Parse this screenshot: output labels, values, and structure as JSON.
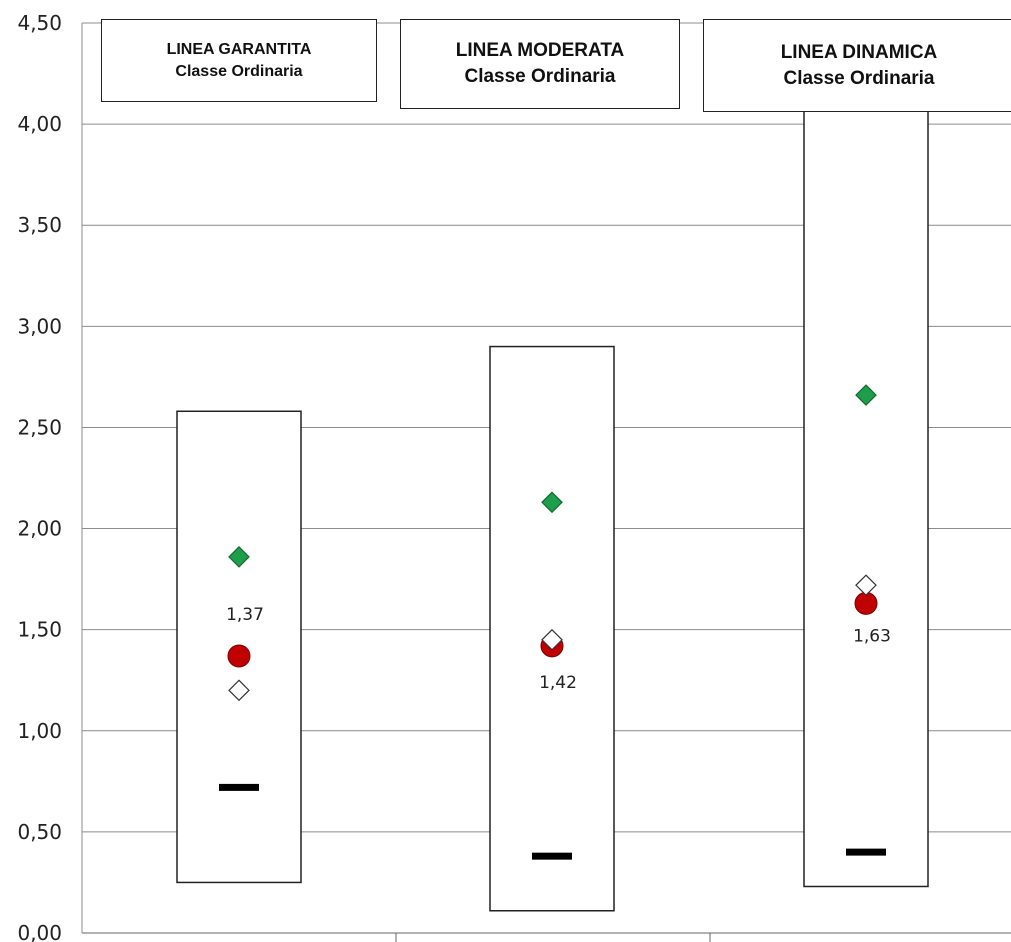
{
  "chart_data": {
    "type": "scatter",
    "ylim": [
      0,
      4.5
    ],
    "yticks": [
      "0,00",
      "0,50",
      "1,00",
      "1,50",
      "2,00",
      "2,50",
      "3,00",
      "3,50",
      "4,00",
      "4,50"
    ],
    "grid": true,
    "categories": [
      {
        "title": "LINEA GARANTITA",
        "subtitle": "Classe Ordinaria"
      },
      {
        "title": "LINEA MODERATA",
        "subtitle": "Classe Ordinaria"
      },
      {
        "title": "LINEA DINAMICA",
        "subtitle": "Classe Ordinaria"
      }
    ],
    "range_boxes": [
      {
        "low": 0.25,
        "high": 2.58
      },
      {
        "low": 0.11,
        "high": 2.9
      },
      {
        "low": 0.23,
        "high": 4.1
      }
    ],
    "series": [
      {
        "marker": "green-diamond",
        "color": "#1e9e4a",
        "values": [
          1.86,
          2.13,
          2.66
        ]
      },
      {
        "marker": "red-circle",
        "color": "#c00000",
        "values": [
          1.37,
          1.42,
          1.63
        ],
        "labels": [
          "1,37",
          "1,42",
          "1,63"
        ]
      },
      {
        "marker": "white-diamond",
        "color": "#ffffff",
        "values": [
          1.2,
          1.45,
          1.72
        ]
      },
      {
        "marker": "black-dash",
        "color": "#000000",
        "values": [
          0.72,
          0.38,
          0.4
        ]
      }
    ]
  }
}
